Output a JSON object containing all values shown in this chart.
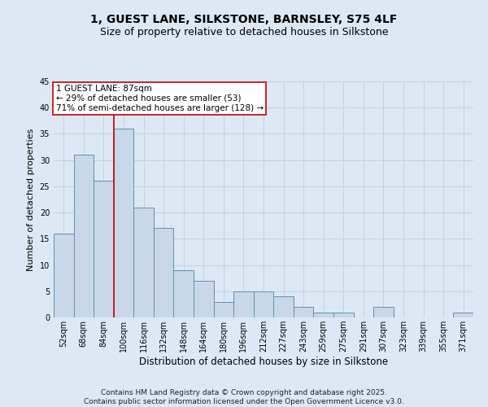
{
  "title_line1": "1, GUEST LANE, SILKSTONE, BARNSLEY, S75 4LF",
  "title_line2": "Size of property relative to detached houses in Silkstone",
  "xlabel": "Distribution of detached houses by size in Silkstone",
  "ylabel": "Number of detached properties",
  "categories": [
    "52sqm",
    "68sqm",
    "84sqm",
    "100sqm",
    "116sqm",
    "132sqm",
    "148sqm",
    "164sqm",
    "180sqm",
    "196sqm",
    "212sqm",
    "227sqm",
    "243sqm",
    "259sqm",
    "275sqm",
    "291sqm",
    "307sqm",
    "323sqm",
    "339sqm",
    "355sqm",
    "371sqm"
  ],
  "values": [
    16,
    31,
    26,
    36,
    21,
    17,
    9,
    7,
    3,
    5,
    5,
    4,
    2,
    1,
    1,
    0,
    2,
    0,
    0,
    0,
    1
  ],
  "bar_color": "#c8d8e8",
  "bar_edge_color": "#6090b0",
  "vline_x": 2.5,
  "vline_color": "#cc0000",
  "annotation_line1": "1 GUEST LANE: 87sqm",
  "annotation_line2": "← 29% of detached houses are smaller (53)",
  "annotation_line3": "71% of semi-detached houses are larger (128) →",
  "annotation_box_facecolor": "#ffffff",
  "annotation_box_edgecolor": "#cc0000",
  "ylim": [
    0,
    45
  ],
  "yticks": [
    0,
    5,
    10,
    15,
    20,
    25,
    30,
    35,
    40,
    45
  ],
  "grid_color": "#c0ccdc",
  "background_color": "#dce8f4",
  "footer": "Contains HM Land Registry data © Crown copyright and database right 2025.\nContains public sector information licensed under the Open Government Licence v3.0.",
  "title_fontsize": 10,
  "subtitle_fontsize": 9,
  "xlabel_fontsize": 8.5,
  "ylabel_fontsize": 8,
  "tick_fontsize": 7,
  "annotation_fontsize": 7.5,
  "footer_fontsize": 6.5
}
